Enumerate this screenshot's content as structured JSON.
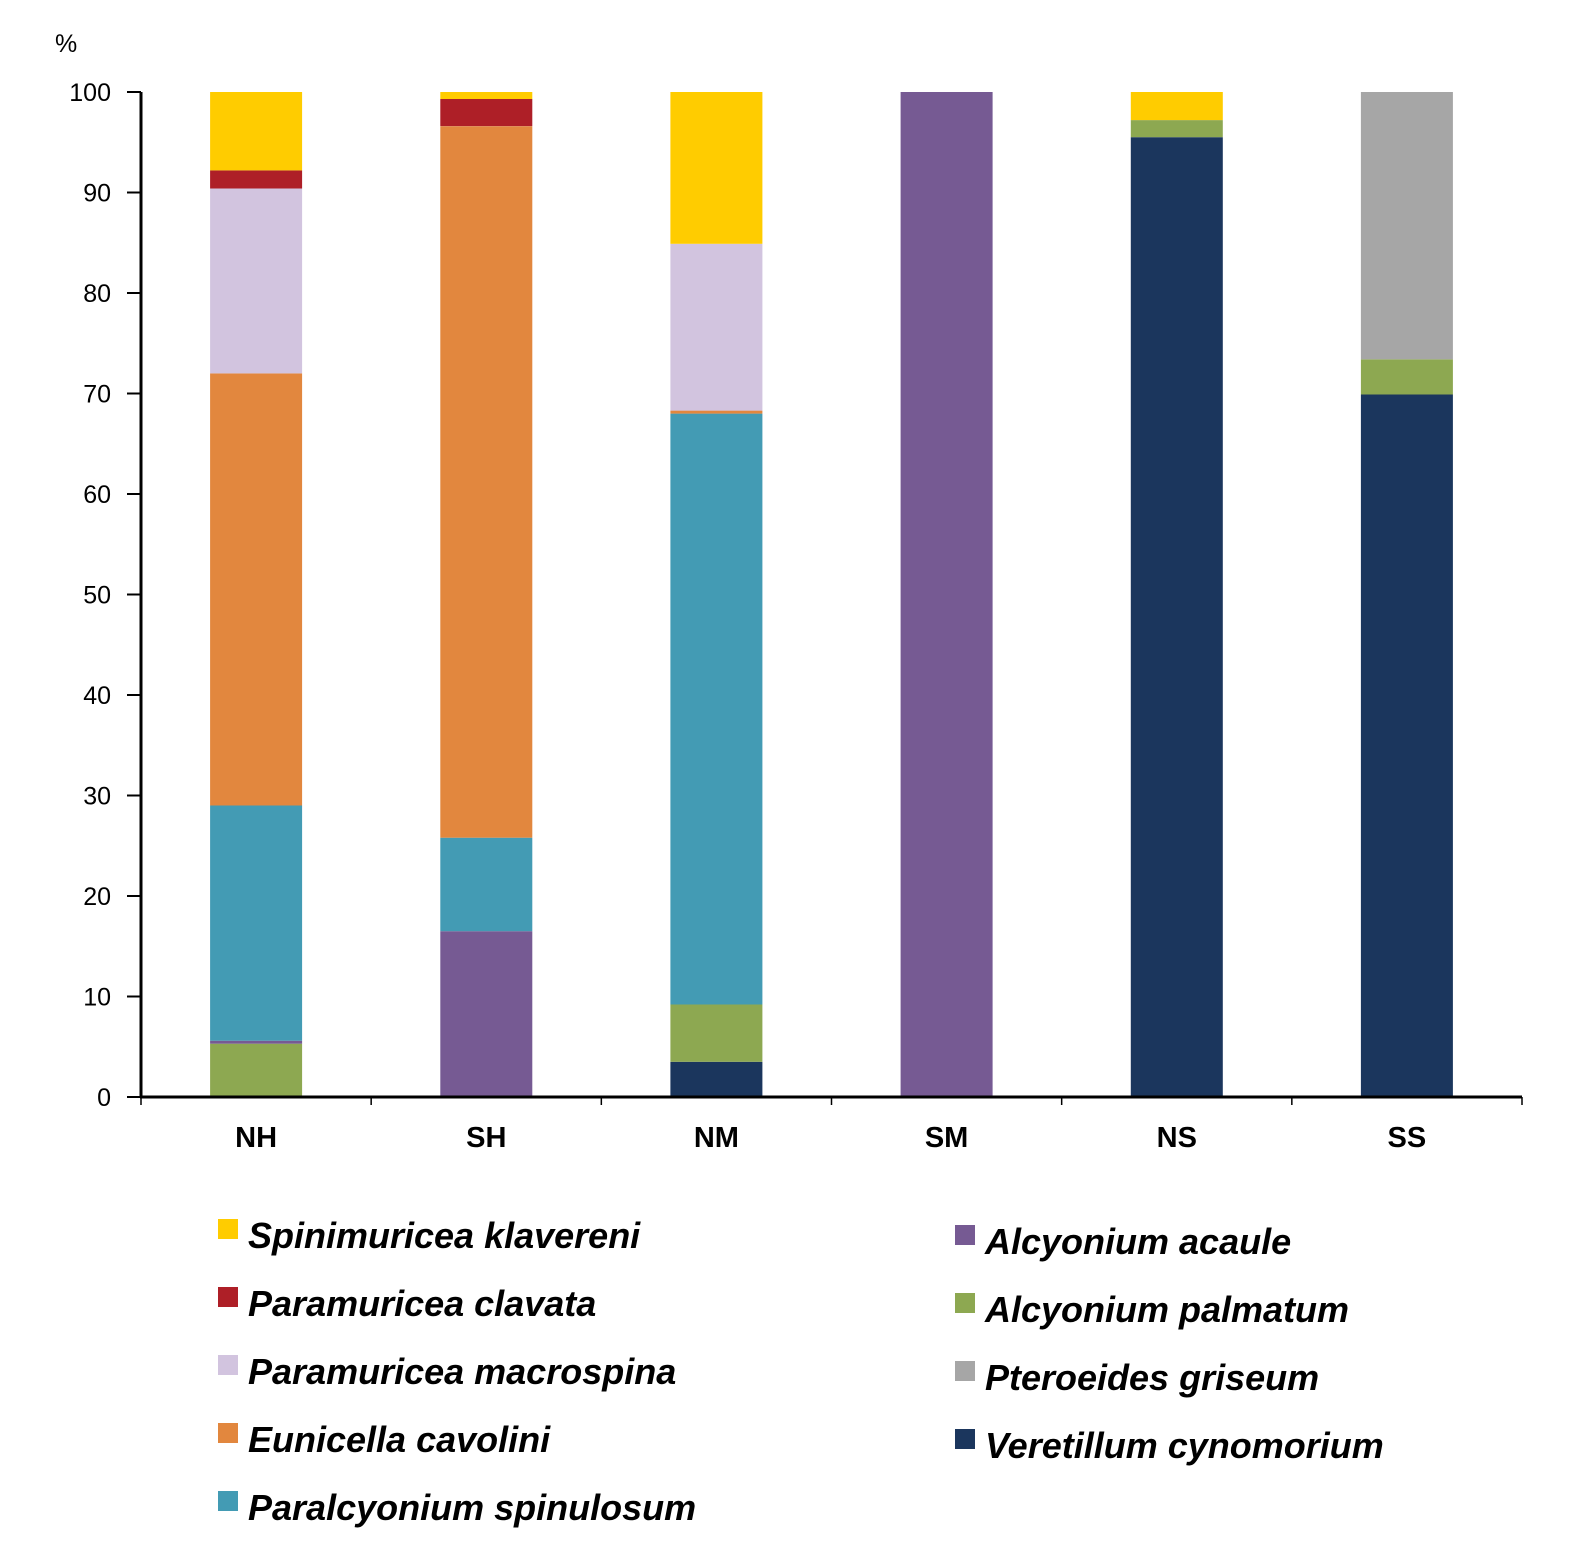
{
  "chart_data": {
    "type": "bar",
    "stacked": true,
    "y_unit_label": "%",
    "title": "",
    "xlabel": "",
    "ylabel": "",
    "ylim": [
      0,
      100
    ],
    "yticks": [
      0,
      10,
      20,
      30,
      40,
      50,
      60,
      70,
      80,
      90,
      100
    ],
    "grid": false,
    "legend_position": "bottom",
    "categories": [
      "NH",
      "SH",
      "NM",
      "SM",
      "NS",
      "SS"
    ],
    "series": [
      {
        "name": "Veretillum cynomorium",
        "color": "#1b365d",
        "values": [
          0,
          0,
          3.5,
          0,
          95.5,
          69.9
        ]
      },
      {
        "name": "Alcyonium palmatum",
        "color": "#8da851",
        "values": [
          5.3,
          0,
          5.7,
          0,
          1.7,
          3.5
        ]
      },
      {
        "name": "Alcyonium acaule",
        "color": "#765a93",
        "values": [
          0.3,
          16.5,
          0,
          100,
          0,
          0
        ]
      },
      {
        "name": "Pteroeides griseum",
        "color": "#a6a6a6",
        "values": [
          0,
          0,
          0,
          0,
          0,
          26.6
        ]
      },
      {
        "name": "Paralcyonium spinulosum",
        "color": "#439bb4",
        "values": [
          23.4,
          9.3,
          58.8,
          0,
          0,
          0
        ]
      },
      {
        "name": "Eunicella cavolini",
        "color": "#e2873e",
        "values": [
          43.0,
          70.8,
          0.3,
          0,
          0,
          0
        ]
      },
      {
        "name": "Paramuricea macrospina",
        "color": "#d2c4df",
        "values": [
          18.4,
          0,
          16.6,
          0,
          0,
          0
        ]
      },
      {
        "name": "Paramuricea clavata",
        "color": "#ae1f27",
        "values": [
          1.8,
          2.7,
          0,
          0,
          0,
          0
        ]
      },
      {
        "name": "Spinimuricea klavereni",
        "color": "#ffcc00",
        "values": [
          7.8,
          0.7,
          15.1,
          0,
          2.8,
          0
        ]
      }
    ],
    "legend_left": [
      "Spinimuricea klavereni",
      "Paramuricea clavata",
      "Paramuricea macrospina",
      "Eunicella cavolini",
      "Paralcyonium spinulosum"
    ],
    "legend_right": [
      "Alcyonium acaule",
      "Alcyonium palmatum",
      "Pteroeides griseum",
      "Veretillum cynomorium"
    ]
  }
}
